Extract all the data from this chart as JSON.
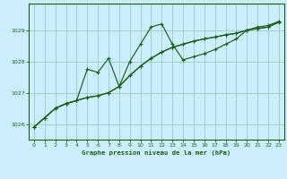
{
  "title": "Graphe pression niveau de la mer (hPa)",
  "background_color": "#cceeff",
  "grid_color": "#99ccbb",
  "line_color": "#1a5c1a",
  "xlim": [
    -0.5,
    23.5
  ],
  "ylim": [
    1025.5,
    1029.85
  ],
  "yticks": [
    1026,
    1027,
    1028,
    1029
  ],
  "xticks": [
    0,
    1,
    2,
    3,
    4,
    5,
    6,
    7,
    8,
    9,
    10,
    11,
    12,
    13,
    14,
    15,
    16,
    17,
    18,
    19,
    20,
    21,
    22,
    23
  ],
  "series1": {
    "x": [
      0,
      1,
      2,
      3,
      4,
      5,
      6,
      7,
      8,
      9,
      10,
      11,
      12,
      13,
      14,
      15,
      16,
      17,
      18,
      19,
      20,
      21,
      22,
      23
    ],
    "y": [
      1025.9,
      1026.2,
      1026.5,
      1026.65,
      1026.75,
      1026.85,
      1026.9,
      1027.0,
      1027.2,
      1027.55,
      1027.85,
      1028.1,
      1028.3,
      1028.45,
      1028.55,
      1028.65,
      1028.72,
      1028.78,
      1028.85,
      1028.9,
      1029.0,
      1029.05,
      1029.1,
      1029.25
    ]
  },
  "series2": {
    "x": [
      0,
      1,
      2,
      3,
      4,
      5,
      6,
      7,
      8,
      9,
      10,
      11,
      12,
      13,
      14,
      15,
      16,
      17,
      18,
      19,
      20,
      21,
      22,
      23
    ],
    "y": [
      1025.9,
      1026.2,
      1026.5,
      1026.65,
      1026.75,
      1026.85,
      1026.9,
      1027.0,
      1027.2,
      1028.0,
      1028.55,
      1029.1,
      1029.2,
      1028.55,
      1028.05,
      1028.15,
      1028.25,
      1028.38,
      1028.55,
      1028.72,
      1029.0,
      1029.1,
      1029.15,
      1029.28
    ]
  },
  "series3": {
    "x": [
      0,
      1,
      2,
      3,
      4,
      5,
      6,
      7,
      8,
      9,
      10,
      11,
      12,
      13,
      14,
      15,
      16,
      17,
      18,
      19,
      20,
      21,
      22,
      23
    ],
    "y": [
      1025.9,
      1026.2,
      1026.5,
      1026.65,
      1026.75,
      1027.75,
      1027.65,
      1028.1,
      1027.2,
      1027.55,
      1027.85,
      1028.1,
      1028.3,
      1028.45,
      1028.55,
      1028.65,
      1028.72,
      1028.78,
      1028.85,
      1028.9,
      1029.0,
      1029.05,
      1029.1,
      1029.28
    ]
  }
}
